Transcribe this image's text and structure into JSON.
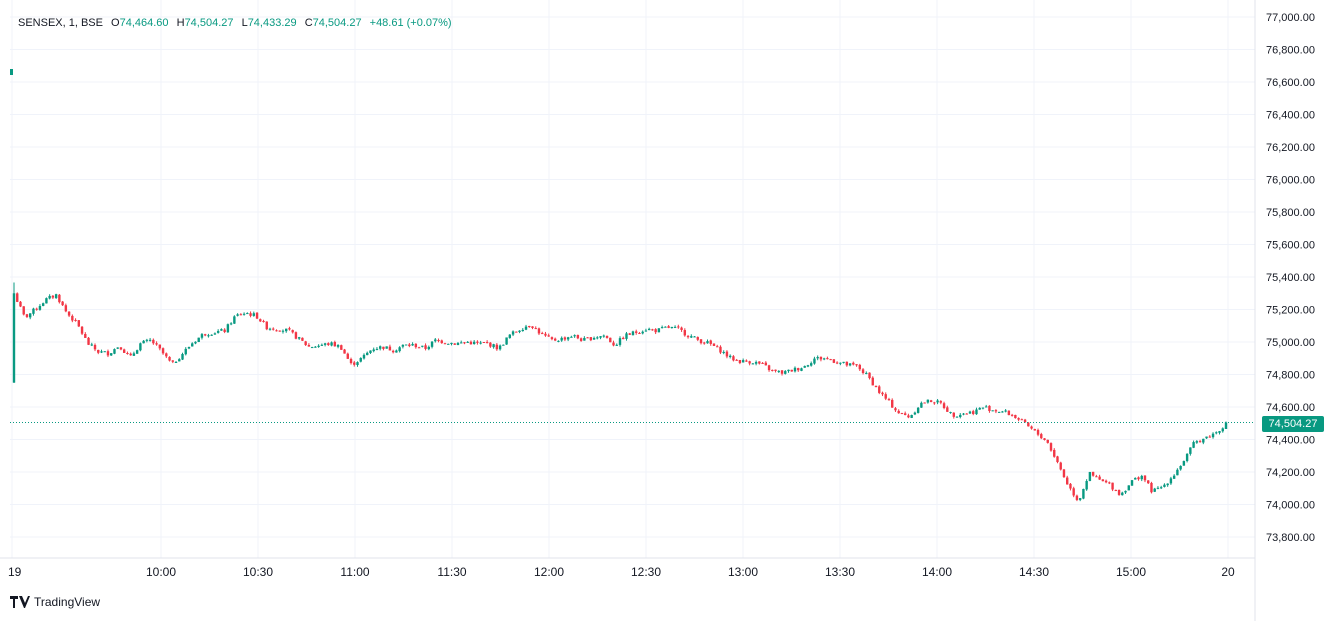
{
  "legend": {
    "symbol": "SENSEX, 1, BSE",
    "open_label": "O",
    "open": "74,464.60",
    "high_label": "H",
    "high": "74,504.27",
    "low_label": "L",
    "low": "74,433.29",
    "close_label": "C",
    "close": "74,504.27",
    "change": "+48.61 (+0.07%)"
  },
  "last_price_label": "74,504.27",
  "branding": "TradingView",
  "colors": {
    "up": "#089981",
    "down": "#F23645",
    "grid": "#F0F3FA",
    "axis_text": "#131722"
  },
  "chart_data": {
    "type": "candlestick",
    "title": "SENSEX, 1, BSE",
    "interval": "1 minute",
    "ylim": [
      73700,
      77050
    ],
    "y_ticks": [
      73800,
      74000,
      74200,
      74400,
      74600,
      74800,
      75000,
      75200,
      75400,
      75600,
      75800,
      76000,
      76200,
      76400,
      76600,
      76800,
      77000
    ],
    "y_tick_labels": [
      "73,800.00",
      "74,000.00",
      "74,200.00",
      "74,400.00",
      "74,600.00",
      "74,800.00",
      "75,000.00",
      "75,200.00",
      "75,400.00",
      "75,600.00",
      "75,800.00",
      "76,000.00",
      "76,200.00",
      "76,400.00",
      "76,600.00",
      "76,800.00",
      "77,000.00"
    ],
    "x_ticks": [
      "19",
      "10:00",
      "10:30",
      "11:00",
      "11:30",
      "12:00",
      "12:30",
      "13:00",
      "13:30",
      "14:00",
      "14:30",
      "15:00",
      "20"
    ],
    "last_price": 74504.27,
    "grid": true,
    "closes_path": [
      [
        0,
        75300
      ],
      [
        5,
        75150
      ],
      [
        10,
        75200
      ],
      [
        15,
        75260
      ],
      [
        20,
        75290
      ],
      [
        25,
        75180
      ],
      [
        30,
        75110
      ],
      [
        35,
        74990
      ],
      [
        40,
        74940
      ],
      [
        45,
        74930
      ],
      [
        50,
        74980
      ],
      [
        55,
        74900
      ],
      [
        60,
        74990
      ],
      [
        65,
        75010
      ],
      [
        70,
        74940
      ],
      [
        75,
        74860
      ],
      [
        80,
        74930
      ],
      [
        85,
        75000
      ],
      [
        90,
        75050
      ],
      [
        95,
        75060
      ],
      [
        100,
        75070
      ],
      [
        105,
        75160
      ],
      [
        110,
        75180
      ],
      [
        115,
        75160
      ],
      [
        120,
        75090
      ],
      [
        125,
        75080
      ],
      [
        130,
        75070
      ],
      [
        135,
        75020
      ],
      [
        140,
        74970
      ],
      [
        145,
        74980
      ],
      [
        150,
        74990
      ],
      [
        155,
        74970
      ],
      [
        160,
        74860
      ],
      [
        165,
        74900
      ],
      [
        170,
        74960
      ],
      [
        175,
        74970
      ],
      [
        180,
        74950
      ],
      [
        185,
        74980
      ],
      [
        190,
        74980
      ],
      [
        195,
        74960
      ],
      [
        200,
        75010
      ],
      [
        205,
        75000
      ],
      [
        210,
        74990
      ],
      [
        215,
        75000
      ],
      [
        220,
        74990
      ],
      [
        225,
        74990
      ],
      [
        230,
        74960
      ],
      [
        235,
        75040
      ],
      [
        240,
        75080
      ],
      [
        245,
        75110
      ],
      [
        250,
        75050
      ],
      [
        255,
        75010
      ],
      [
        260,
        75020
      ],
      [
        265,
        75040
      ],
      [
        270,
        75010
      ],
      [
        275,
        75030
      ],
      [
        280,
        75040
      ],
      [
        285,
        74980
      ],
      [
        290,
        75040
      ],
      [
        295,
        75060
      ],
      [
        300,
        75080
      ],
      [
        305,
        75070
      ],
      [
        310,
        75090
      ],
      [
        315,
        75080
      ],
      [
        320,
        75040
      ],
      [
        325,
        75010
      ],
      [
        330,
        74990
      ],
      [
        335,
        74950
      ],
      [
        340,
        74900
      ],
      [
        345,
        74880
      ],
      [
        350,
        74880
      ],
      [
        355,
        74860
      ],
      [
        360,
        74820
      ],
      [
        365,
        74810
      ],
      [
        370,
        74830
      ],
      [
        375,
        74850
      ],
      [
        380,
        74900
      ],
      [
        385,
        74900
      ],
      [
        390,
        74880
      ],
      [
        395,
        74860
      ],
      [
        400,
        74850
      ],
      [
        405,
        74790
      ],
      [
        410,
        74700
      ],
      [
        415,
        74630
      ],
      [
        420,
        74560
      ],
      [
        425,
        74540
      ],
      [
        430,
        74620
      ],
      [
        435,
        74640
      ],
      [
        440,
        74620
      ],
      [
        445,
        74550
      ],
      [
        450,
        74560
      ],
      [
        455,
        74570
      ],
      [
        460,
        74600
      ],
      [
        465,
        74580
      ],
      [
        470,
        74570
      ],
      [
        475,
        74540
      ],
      [
        480,
        74490
      ],
      [
        485,
        74440
      ],
      [
        490,
        74390
      ],
      [
        495,
        74260
      ],
      [
        500,
        74120
      ],
      [
        505,
        74020
      ],
      [
        510,
        74190
      ],
      [
        515,
        74150
      ],
      [
        520,
        74120
      ],
      [
        525,
        74060
      ],
      [
        530,
        74140
      ],
      [
        535,
        74180
      ],
      [
        540,
        74080
      ],
      [
        545,
        74110
      ],
      [
        550,
        74180
      ],
      [
        555,
        74270
      ],
      [
        560,
        74380
      ],
      [
        565,
        74410
      ],
      [
        570,
        74440
      ],
      [
        575,
        74500
      ]
    ]
  }
}
